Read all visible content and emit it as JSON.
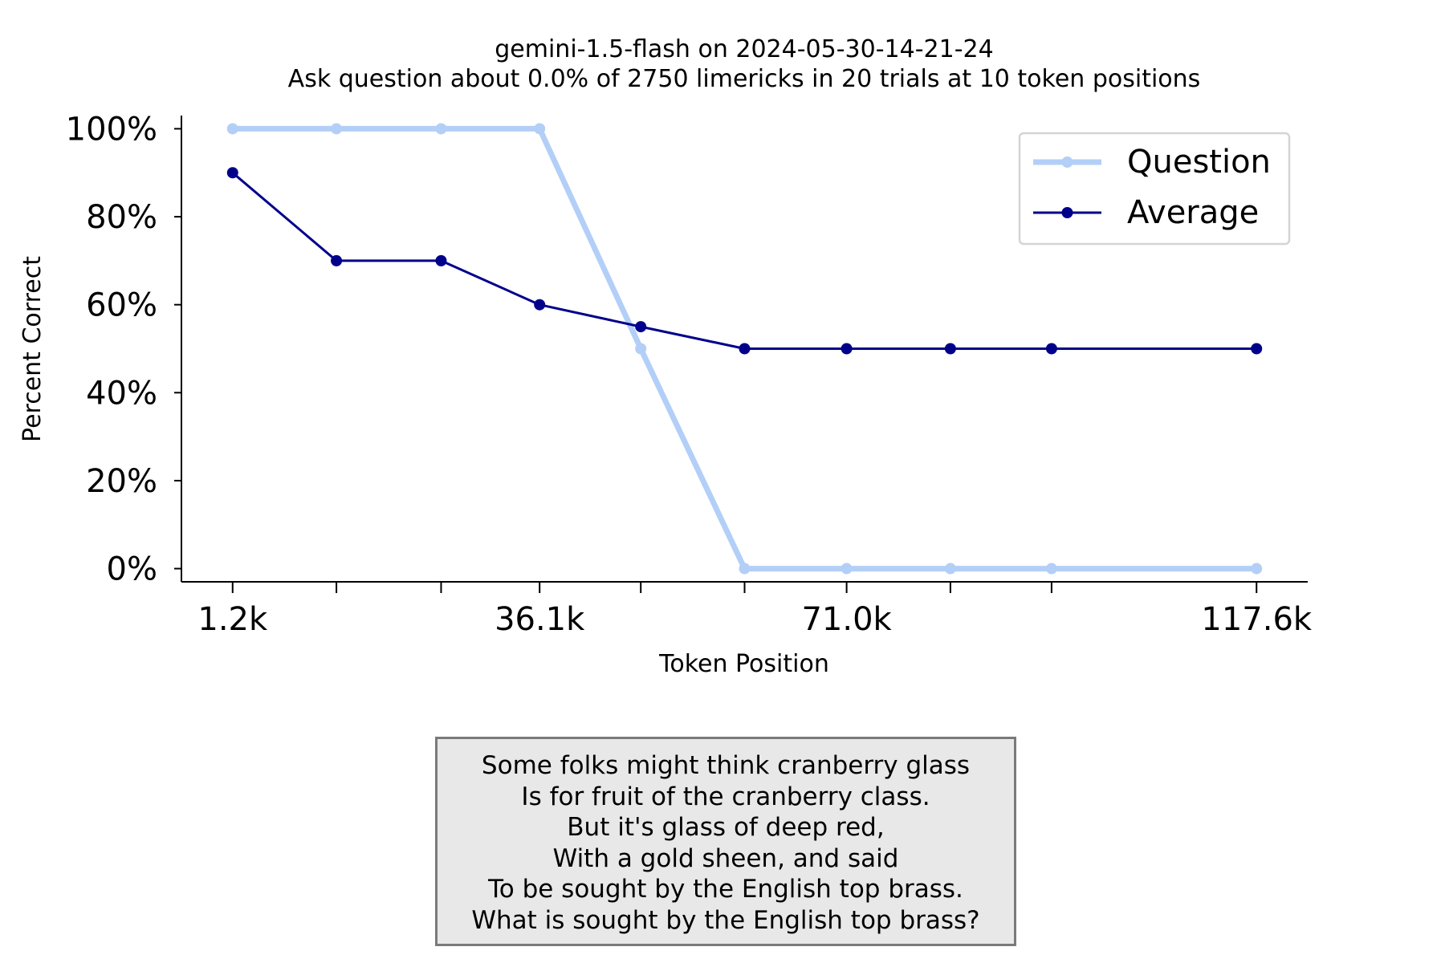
{
  "chart_data": {
    "type": "line",
    "title": "gemini-1.5-flash on 2024-05-30-14-21-24",
    "subtitle": "Ask question about 0.0% of 2750 limericks in 20 trials at 10 token positions",
    "xlabel": "Token Position",
    "ylabel": "Percent Correct",
    "x": [
      1.2,
      13.0,
      24.9,
      36.1,
      47.6,
      59.4,
      71.0,
      82.8,
      94.3,
      117.6
    ],
    "xtick_labels": [
      {
        "x": 1.2,
        "label": "1.2k"
      },
      {
        "x": 13.0,
        "label": ""
      },
      {
        "x": 24.9,
        "label": ""
      },
      {
        "x": 36.1,
        "label": "36.1k"
      },
      {
        "x": 47.6,
        "label": ""
      },
      {
        "x": 59.4,
        "label": ""
      },
      {
        "x": 71.0,
        "label": "71.0k"
      },
      {
        "x": 82.8,
        "label": ""
      },
      {
        "x": 94.3,
        "label": ""
      },
      {
        "x": 117.6,
        "label": "117.6k"
      }
    ],
    "yticks": [
      {
        "value": 0,
        "label": "0%"
      },
      {
        "value": 20,
        "label": "20%"
      },
      {
        "value": 40,
        "label": "40%"
      },
      {
        "value": 60,
        "label": "60%"
      },
      {
        "value": 80,
        "label": "80%"
      },
      {
        "value": 100,
        "label": "100%"
      }
    ],
    "ylim": [
      -3,
      103
    ],
    "series": [
      {
        "name": "Question",
        "color": "#b3cff7",
        "values": [
          100,
          100,
          100,
          100,
          50,
          0,
          0,
          0,
          0,
          0
        ]
      },
      {
        "name": "Average",
        "color": "#00008b",
        "values": [
          90,
          70,
          70,
          60,
          55,
          50,
          50,
          50,
          50,
          50
        ]
      }
    ],
    "legend": {
      "position": "top-right",
      "entries": [
        "Question",
        "Average"
      ]
    }
  },
  "limerick": {
    "lines": [
      "Some folks might think cranberry glass",
      "Is for fruit of the cranberry class.",
      "But it's glass of deep red,",
      "With a gold sheen, and said",
      "To be sought by the English top brass.",
      "What is sought by the English top brass?"
    ]
  }
}
